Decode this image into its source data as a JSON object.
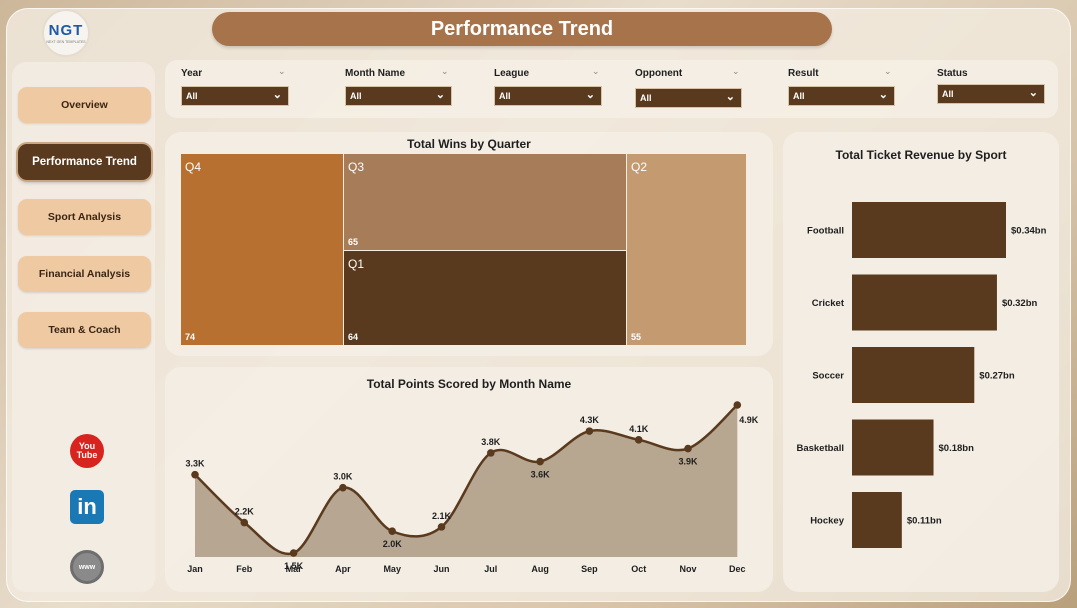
{
  "app": {
    "logo_text": "NGT",
    "logo_sub": "NEXT GEN TEMPLATES",
    "title": "Performance Trend"
  },
  "sidebar": {
    "items": [
      {
        "label": "Overview",
        "active": false
      },
      {
        "label": "Performance Trend",
        "active": true
      },
      {
        "label": "Sport Analysis",
        "active": false
      },
      {
        "label": "Financial Analysis",
        "active": false
      },
      {
        "label": "Team & Coach",
        "active": false
      }
    ],
    "social": {
      "youtube_top": "You",
      "youtube_bottom": "Tube",
      "linkedin": "in",
      "web": "www"
    }
  },
  "filters": [
    {
      "label": "Year",
      "value": "All"
    },
    {
      "label": "Month Name",
      "value": "All"
    },
    {
      "label": "League",
      "value": "All"
    },
    {
      "label": "Opponent",
      "value": "All"
    },
    {
      "label": "Result",
      "value": "All"
    },
    {
      "label": "Status",
      "value": "All"
    }
  ],
  "colors": {
    "dark_brown": "#5a3a1e",
    "q4": "#b87031",
    "q3": "#a67d58",
    "q2": "#c49a70",
    "q1": "#5a3a1e",
    "accent": "#a7734a"
  },
  "chart_data": [
    {
      "type": "treemap",
      "title": "Total Wins by Quarter",
      "items": [
        {
          "label": "Q4",
          "value": 74
        },
        {
          "label": "Q3",
          "value": 65
        },
        {
          "label": "Q1",
          "value": 64
        },
        {
          "label": "Q2",
          "value": 55
        }
      ]
    },
    {
      "type": "bar",
      "orientation": "horizontal",
      "title": "Total Ticket Revenue by Sport",
      "categories": [
        "Football",
        "Cricket",
        "Soccer",
        "Basketball",
        "Hockey"
      ],
      "values": [
        0.34,
        0.32,
        0.27,
        0.18,
        0.11
      ],
      "value_labels": [
        "$0.34bn",
        "$0.32bn",
        "$0.27bn",
        "$0.18bn",
        "$0.11bn"
      ],
      "unit": "bn"
    },
    {
      "type": "area",
      "title": "Total Points Scored by Month Name",
      "categories": [
        "Jan",
        "Feb",
        "Mar",
        "Apr",
        "May",
        "Jun",
        "Jul",
        "Aug",
        "Sep",
        "Oct",
        "Nov",
        "Dec"
      ],
      "values": [
        3.3,
        2.2,
        1.5,
        3.0,
        2.0,
        2.1,
        3.8,
        3.6,
        4.3,
        4.1,
        3.9,
        4.9
      ],
      "value_labels": [
        "3.3K",
        "2.2K",
        "1.5K",
        "3.0K",
        "2.0K",
        "2.1K",
        "3.8K",
        "3.6K",
        "4.3K",
        "4.1K",
        "3.9K",
        "4.9K"
      ],
      "unit": "K"
    }
  ]
}
